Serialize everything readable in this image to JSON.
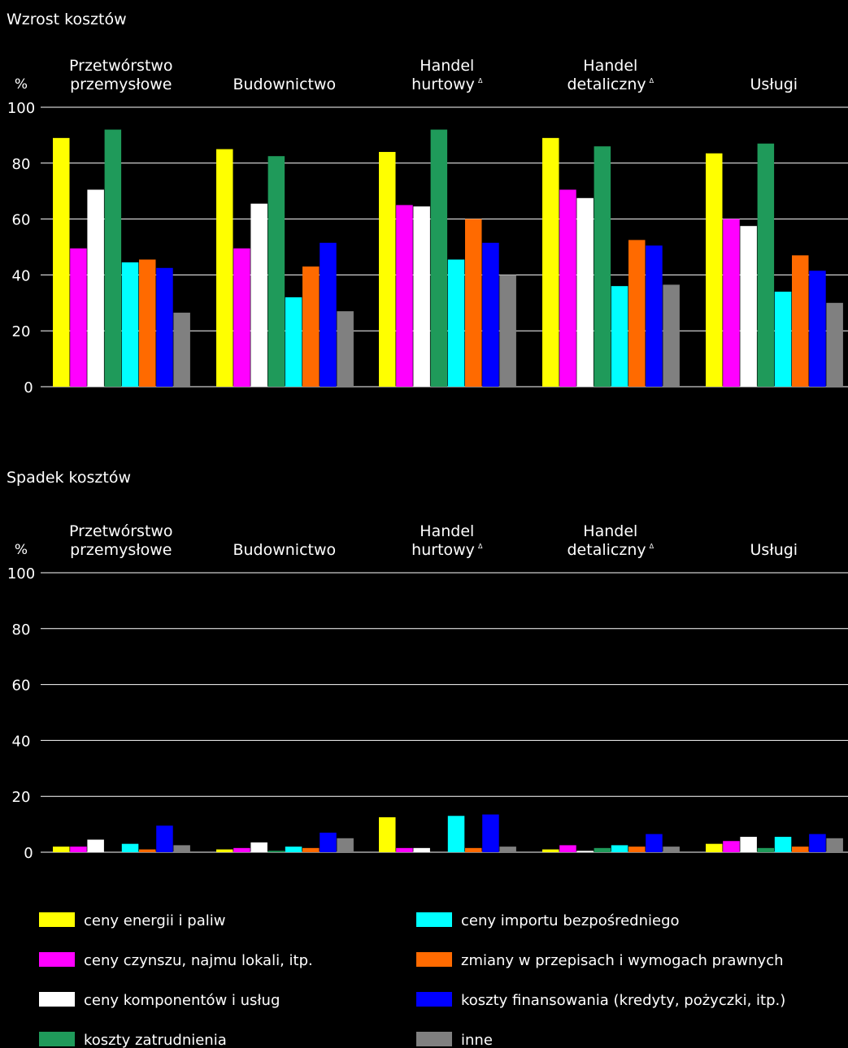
{
  "chart_data": [
    {
      "type": "bar",
      "title": "Wzrost kosztów",
      "ylabel": "%",
      "ylim": [
        0,
        100
      ],
      "yticks": [
        0,
        20,
        40,
        60,
        80,
        100
      ],
      "grid": true,
      "categories": [
        {
          "lines": [
            "Przetwórstwo",
            "przemysłowe"
          ],
          "marker": ""
        },
        {
          "lines": [
            "Budownictwo"
          ],
          "marker": ""
        },
        {
          "lines": [
            "Handel",
            "hurtowy"
          ],
          "marker": "Δ"
        },
        {
          "lines": [
            "Handel",
            "detaliczny"
          ],
          "marker": "Δ"
        },
        {
          "lines": [
            "Usługi"
          ],
          "marker": ""
        }
      ],
      "series": [
        {
          "name": "ceny energii i paliw",
          "color": "#FFFF00",
          "values": [
            89,
            85,
            84,
            89,
            83.5
          ]
        },
        {
          "name": "ceny czynszu, najmu lokali, itp.",
          "color": "#FF00FF",
          "values": [
            49.5,
            49.5,
            65,
            70.5,
            60
          ]
        },
        {
          "name": "ceny komponentów i usług",
          "color": "#FFFFFF",
          "values": [
            70.5,
            65.5,
            64.5,
            67.5,
            57.5
          ]
        },
        {
          "name": "koszty zatrudnienia",
          "color": "#1F9A5A",
          "values": [
            92,
            82.5,
            92,
            86,
            87
          ]
        },
        {
          "name": "ceny importu bezpośredniego",
          "color": "#00FFFF",
          "values": [
            44.5,
            32,
            45.5,
            36,
            34
          ]
        },
        {
          "name": "zmiany w przepisach i wymogach prawnych",
          "color": "#FF6A00",
          "values": [
            45.5,
            43,
            60,
            52.5,
            47
          ]
        },
        {
          "name": "koszty finansowania (kredyty, pożyczki, itp.)",
          "color": "#0000FF",
          "values": [
            42.5,
            51.5,
            51.5,
            50.5,
            41.5
          ]
        },
        {
          "name": "inne",
          "color": "#808080",
          "values": [
            26.5,
            27,
            40,
            36.5,
            30
          ]
        }
      ]
    },
    {
      "type": "bar",
      "title": "Spadek kosztów",
      "ylabel": "%",
      "ylim": [
        0,
        100
      ],
      "yticks": [
        0,
        20,
        40,
        60,
        80,
        100
      ],
      "grid": true,
      "categories": [
        {
          "lines": [
            "Przetwórstwo",
            "przemysłowe"
          ],
          "marker": ""
        },
        {
          "lines": [
            "Budownictwo"
          ],
          "marker": ""
        },
        {
          "lines": [
            "Handel",
            "hurtowy"
          ],
          "marker": "Δ"
        },
        {
          "lines": [
            "Handel",
            "detaliczny"
          ],
          "marker": "Δ"
        },
        {
          "lines": [
            "Usługi"
          ],
          "marker": ""
        }
      ],
      "series": [
        {
          "name": "ceny energii i paliw",
          "color": "#FFFF00",
          "values": [
            2,
            1,
            12.5,
            1,
            3
          ]
        },
        {
          "name": "ceny czynszu, najmu lokali, itp.",
          "color": "#FF00FF",
          "values": [
            2,
            1.5,
            1.5,
            2.5,
            4
          ]
        },
        {
          "name": "ceny komponentów i usług",
          "color": "#FFFFFF",
          "values": [
            4.5,
            3.5,
            1.5,
            0.5,
            5.5
          ]
        },
        {
          "name": "koszty zatrudnienia",
          "color": "#1F9A5A",
          "values": [
            0,
            0.5,
            0,
            1.5,
            1.5
          ]
        },
        {
          "name": "ceny importu bezpośredniego",
          "color": "#00FFFF",
          "values": [
            3,
            2,
            13,
            2.5,
            5.5
          ]
        },
        {
          "name": "zmiany w przepisach i wymogach prawnych",
          "color": "#FF6A00",
          "values": [
            1,
            1.5,
            1.5,
            2,
            2
          ]
        },
        {
          "name": "koszty finansowania (kredyty, pożyczki, itp.)",
          "color": "#0000FF",
          "values": [
            9.5,
            7,
            13.5,
            6.5,
            6.5
          ]
        },
        {
          "name": "inne",
          "color": "#808080",
          "values": [
            2.5,
            5,
            2,
            2,
            5
          ]
        }
      ]
    }
  ],
  "legend": {
    "placement": "bottom",
    "items": [
      {
        "label": "ceny energii i paliw",
        "color": "#FFFF00"
      },
      {
        "label": "ceny czynszu, najmu lokali, itp.",
        "color": "#FF00FF"
      },
      {
        "label": "ceny komponentów i usług",
        "color": "#FFFFFF"
      },
      {
        "label": "koszty zatrudnienia",
        "color": "#1F9A5A"
      },
      {
        "label": "ceny importu bezpośredniego",
        "color": "#00FFFF"
      },
      {
        "label": "zmiany w przepisach i wymogach prawnych",
        "color": "#FF6A00"
      },
      {
        "label": "koszty finansowania (kredyty, pożyczki, itp.)",
        "color": "#0000FF"
      },
      {
        "label": "inne",
        "color": "#808080"
      }
    ]
  }
}
